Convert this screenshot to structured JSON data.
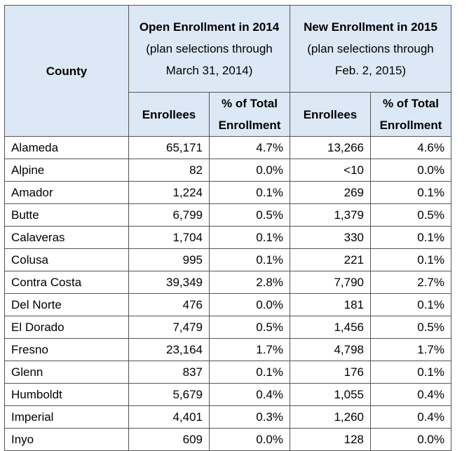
{
  "table": {
    "header": {
      "county": "County",
      "group1": {
        "title": "Open Enrollment in 2014",
        "note": "(plan selections through March 31, 2014)"
      },
      "group2": {
        "title": "New Enrollment in 2015",
        "note": "(plan selections through Feb. 2, 2015)"
      },
      "columns": [
        "Enrollees",
        "% of Total Enrollment",
        "Enrollees",
        "% of Total Enrollment"
      ]
    },
    "rows": [
      [
        "Alameda",
        "65,171",
        "4.7%",
        "13,266",
        "4.6%"
      ],
      [
        "Alpine",
        "82",
        "0.0%",
        "<10",
        "0.0%"
      ],
      [
        "Amador",
        "1,224",
        "0.1%",
        "269",
        "0.1%"
      ],
      [
        "Butte",
        "6,799",
        "0.5%",
        "1,379",
        "0.5%"
      ],
      [
        "Calaveras",
        "1,704",
        "0.1%",
        "330",
        "0.1%"
      ],
      [
        "Colusa",
        "995",
        "0.1%",
        "221",
        "0.1%"
      ],
      [
        "Contra Costa",
        "39,349",
        "2.8%",
        "7,790",
        "2.7%"
      ],
      [
        "Del Norte",
        "476",
        "0.0%",
        "181",
        "0.1%"
      ],
      [
        "El Dorado",
        "7,479",
        "0.5%",
        "1,456",
        "0.5%"
      ],
      [
        "Fresno",
        "23,164",
        "1.7%",
        "4,798",
        "1.7%"
      ],
      [
        "Glenn",
        "837",
        "0.1%",
        "176",
        "0.1%"
      ],
      [
        "Humboldt",
        "5,679",
        "0.4%",
        "1,055",
        "0.4%"
      ],
      [
        "Imperial",
        "4,401",
        "0.3%",
        "1,260",
        "0.4%"
      ],
      [
        "Inyo",
        "609",
        "0.0%",
        "128",
        "0.0%"
      ]
    ]
  }
}
